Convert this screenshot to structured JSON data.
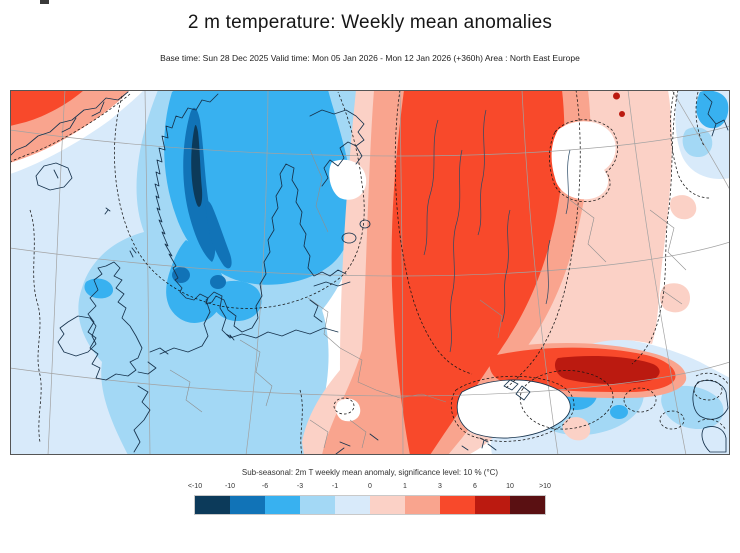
{
  "header": {
    "title": "2 m temperature: Weekly mean anomalies",
    "subtitle": "Base time: Sun 28 Dec 2025 Valid time: Mon 05 Jan 2026 - Mon 12 Jan 2026 (+360h) Area : North East Europe"
  },
  "legend": {
    "title": "Sub-seasonal: 2m T weekly mean anomaly, significance level: 10 % (°C)",
    "ticks": [
      "<-10",
      "-10",
      "-6",
      "-3",
      "-1",
      "0",
      "1",
      "3",
      "6",
      "10",
      ">10"
    ],
    "colors": [
      "#0c3a5a",
      "#1173b7",
      "#38b1f0",
      "#a3d8f5",
      "#d8eafa",
      "#fbd1c6",
      "#f9a48e",
      "#f8492b",
      "#bb1a10",
      "#5a1012"
    ]
  }
}
